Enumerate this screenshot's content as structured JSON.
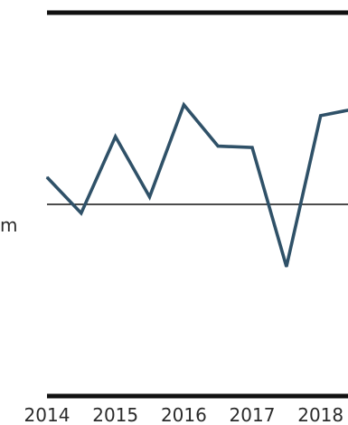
{
  "chart_data": {
    "type": "line",
    "x_tick_labels": [
      "2014",
      "2015",
      "2016",
      "2017",
      "2018"
    ],
    "side_label_fragment": "m",
    "series": [
      {
        "color": "#2f5168",
        "points": [
          {
            "x": 2014.0,
            "y": 0.4
          },
          {
            "x": 2014.5,
            "y": -0.13
          },
          {
            "x": 2015.0,
            "y": 1.0
          },
          {
            "x": 2015.5,
            "y": 0.11
          },
          {
            "x": 2016.0,
            "y": 1.47
          },
          {
            "x": 2016.5,
            "y": 0.86
          },
          {
            "x": 2017.0,
            "y": 0.84
          },
          {
            "x": 2017.5,
            "y": -0.92
          },
          {
            "x": 2018.0,
            "y": 1.31
          },
          {
            "x": 2018.5,
            "y": 1.41
          }
        ]
      }
    ],
    "reference_line": {
      "y": 0
    },
    "xlim": [
      2014.0,
      2018.4
    ],
    "ylim": [
      -2.83,
      2.83
    ],
    "grid": false,
    "legend": "none"
  }
}
